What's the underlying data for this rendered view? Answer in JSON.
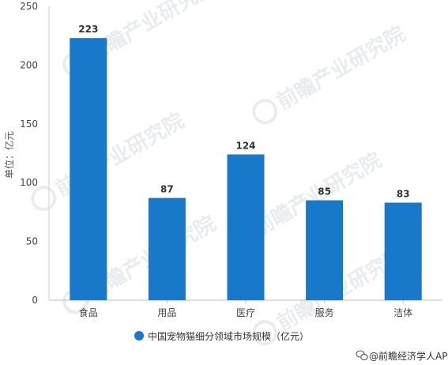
{
  "chart_data": {
    "type": "bar",
    "title": "",
    "xlabel": "",
    "ylabel": "单位：亿元",
    "categories": [
      "食品",
      "用品",
      "医疗",
      "服务",
      "洁体"
    ],
    "series": [
      {
        "name": "中国宠物猫细分领域市场规模（亿元）",
        "values": [
          223,
          87,
          124,
          85,
          83
        ],
        "color": "#1878c9"
      }
    ],
    "ylim": [
      0,
      250
    ],
    "yticks": [
      0,
      50,
      100,
      150,
      200,
      250
    ],
    "data_labels": [
      "223",
      "87",
      "124",
      "85",
      "83"
    ],
    "grid": false,
    "legend_position": "bottom"
  },
  "source": {
    "text": "@前瞻经济学人APP",
    "icon": "wechat-icon"
  },
  "watermark": {
    "text": "前瞻产业研究院"
  }
}
